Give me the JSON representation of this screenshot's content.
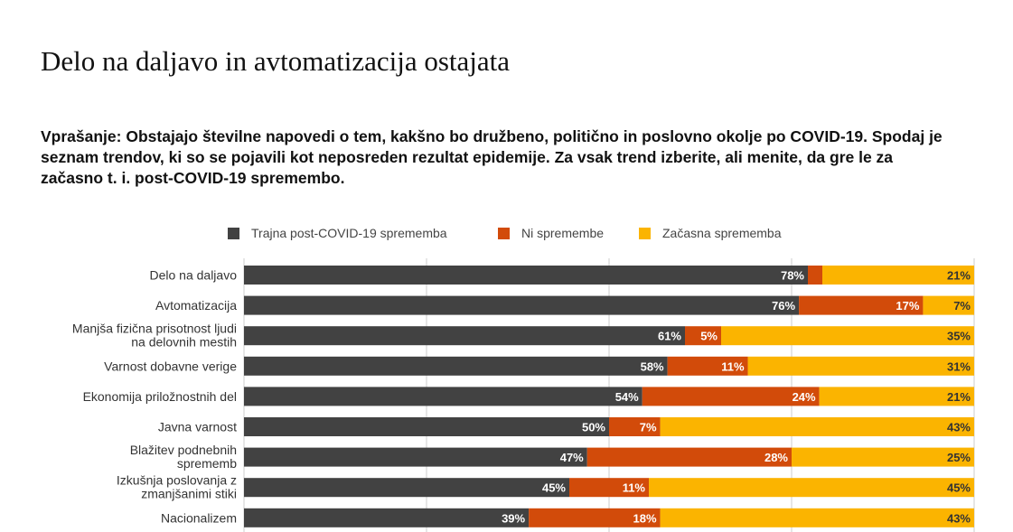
{
  "page": {
    "title": "Delo na daljavo in avtomatizacija ostajata",
    "question": "Vprašanje: Obstajajo številne napovedi o tem, kakšno bo družbeno, politično in poslovno okolje po COVID-19. Spodaj je seznam trendov, ki so se pojavili kot neposreden rezultat epidemije. Za vsak trend izberite, ali menite, da gre le za začasno t. i. post-COVID-19 spremembo."
  },
  "chart_data": {
    "type": "bar",
    "orientation": "horizontal",
    "stacked": true,
    "categories": [
      [
        "Delo na daljavo"
      ],
      [
        "Avtomatizacija"
      ],
      [
        "Manjša fizična prisotnost ljudi",
        "na delovnih mestih"
      ],
      [
        "Varnost dobavne verige"
      ],
      [
        "Ekonomija priložnostnih del"
      ],
      [
        "Javna varnost"
      ],
      [
        "Blažitev podnebnih",
        "sprememb"
      ],
      [
        "Izkušnja poslovanja z",
        "zmanjšanimi stiki"
      ],
      [
        "Nacionalizem"
      ]
    ],
    "series": [
      {
        "name": "Trajna post-COVID-19 sprememba",
        "color": "#424242",
        "values": [
          78,
          76,
          61,
          58,
          54,
          50,
          47,
          45,
          39
        ]
      },
      {
        "name": "Ni spremembe",
        "color": "#d24b0a",
        "values": [
          2,
          17,
          5,
          11,
          24,
          7,
          28,
          11,
          18
        ]
      },
      {
        "name": "Začasna sprememba",
        "color": "#fbb400",
        "values": [
          21,
          7,
          35,
          31,
          21,
          43,
          25,
          45,
          43
        ]
      }
    ],
    "value_suffix": "%",
    "xlim": [
      0,
      100
    ],
    "grid": true,
    "legend": "top"
  }
}
